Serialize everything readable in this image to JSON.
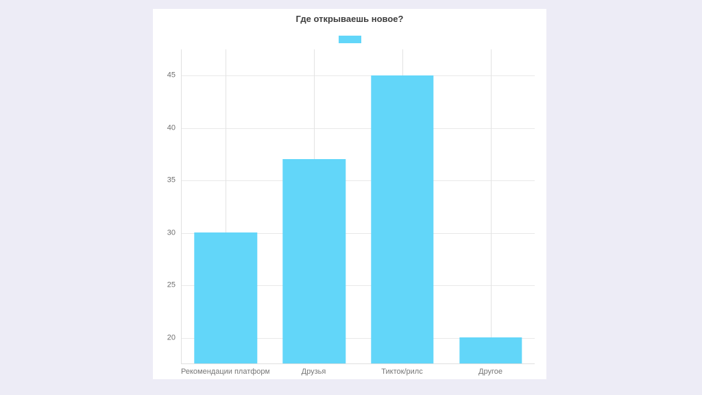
{
  "chart_data": {
    "type": "bar",
    "title": "Где открываешь новое?",
    "categories": [
      "Рекомендации платформ",
      "Друзья",
      "Тикток/рилс",
      "Другое"
    ],
    "values": [
      30,
      37,
      45,
      20
    ],
    "yticks": [
      20,
      25,
      30,
      35,
      40,
      45
    ],
    "ylim": [
      17.5,
      47.5
    ],
    "grid": true,
    "legend_position": "top",
    "legend_label": "",
    "xlabel": "",
    "ylabel": ""
  },
  "colors": {
    "bar": "#62d6f9",
    "page_background": "#edecf6",
    "card_background": "#ffffff",
    "gridline_horizontal": "#e8e8e8",
    "gridline_vertical": "#e3e3e3",
    "axis_line": "#e0e0e0",
    "title_text": "#3d3d3d",
    "tick_text": "#6e6e6e",
    "category_text": "#757575"
  }
}
